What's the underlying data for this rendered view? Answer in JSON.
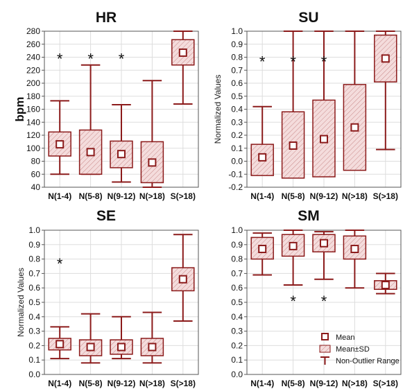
{
  "colors": {
    "box": "#8b1a1a",
    "fill": "#f2d7d7",
    "grid": "#dddddd",
    "axis": "#555555"
  },
  "legend": {
    "mean": "Mean",
    "sd": "Mean±SD",
    "range": "Non-Outlier Range"
  },
  "chart_data": [
    {
      "id": "hr",
      "type": "box",
      "title": "HR",
      "ylabel": "bpm",
      "ylim": [
        40,
        280
      ],
      "yticks": [
        40,
        60,
        80,
        100,
        120,
        140,
        160,
        180,
        200,
        220,
        240,
        260,
        280
      ],
      "ytick_labels": [
        "40",
        "60",
        "80",
        "100",
        "120",
        "140",
        "160",
        "180",
        "200",
        "220",
        "240",
        "260",
        "280"
      ],
      "categories": [
        "N(1-4)",
        "N(5-8)",
        "N(9-12)",
        "N(>18)",
        "S(>18)"
      ],
      "mean": [
        106,
        94,
        91,
        78,
        247
      ],
      "sd_low": [
        88,
        60,
        70,
        47,
        228
      ],
      "sd_high": [
        125,
        128,
        111,
        110,
        267
      ],
      "range_low": [
        60,
        60,
        48,
        40,
        168
      ],
      "range_high": [
        173,
        228,
        167,
        204,
        280
      ],
      "stars": [
        {
          "label": "*",
          "category": 0,
          "y": 240
        },
        {
          "label": "*",
          "category": 1,
          "y": 240
        },
        {
          "label": "*",
          "category": 2,
          "y": 240
        }
      ],
      "grid": true
    },
    {
      "id": "su",
      "type": "box",
      "title": "SU",
      "ylabel": "Normalized Values",
      "ylim": [
        -0.2,
        1.0
      ],
      "yticks": [
        -0.2,
        -0.1,
        0.0,
        0.1,
        0.2,
        0.3,
        0.4,
        0.5,
        0.6,
        0.7,
        0.8,
        0.9,
        1.0
      ],
      "ytick_labels": [
        "-0.2",
        "-0.1",
        "0.0",
        "0.1",
        "0.2",
        "0.3",
        "0.4",
        "0.5",
        "0.6",
        "0.7",
        "0.8",
        "0.9",
        "1.0"
      ],
      "categories": [
        "N(1-4)",
        "N(5-8)",
        "N(9-12)",
        "N(>18)",
        "S(>18)"
      ],
      "mean": [
        0.03,
        0.12,
        0.17,
        0.26,
        0.79
      ],
      "sd_low": [
        -0.11,
        -0.13,
        -0.12,
        -0.07,
        0.61
      ],
      "sd_high": [
        0.13,
        0.38,
        0.47,
        0.59,
        0.97
      ],
      "range_low": [
        -0.04,
        -0.04,
        -0.04,
        -0.04,
        0.09
      ],
      "range_high": [
        0.42,
        1.0,
        1.0,
        1.0,
        1.0
      ],
      "stars": [
        {
          "label": "*",
          "category": 0,
          "y": 0.78
        },
        {
          "label": "*",
          "category": 1,
          "y": 0.78
        },
        {
          "label": "*",
          "category": 2,
          "y": 0.78
        }
      ],
      "grid": true
    },
    {
      "id": "se",
      "type": "box",
      "title": "SE",
      "ylabel": "Normalized Values",
      "ylim": [
        0.0,
        1.0
      ],
      "yticks": [
        0.0,
        0.1,
        0.2,
        0.3,
        0.4,
        0.5,
        0.6,
        0.7,
        0.8,
        0.9,
        1.0
      ],
      "ytick_labels": [
        "0.0",
        "0.1",
        "0.2",
        "0.3",
        "0.4",
        "0.5",
        "0.6",
        "0.7",
        "0.8",
        "0.9",
        "1.0"
      ],
      "categories": [
        "N(1-4)",
        "N(5-8)",
        "N(9-12)",
        "N(>18)",
        "S(>18)"
      ],
      "mean": [
        0.21,
        0.19,
        0.19,
        0.19,
        0.66
      ],
      "sd_low": [
        0.17,
        0.13,
        0.14,
        0.13,
        0.58
      ],
      "sd_high": [
        0.25,
        0.24,
        0.24,
        0.25,
        0.74
      ],
      "range_low": [
        0.11,
        0.08,
        0.11,
        0.08,
        0.37
      ],
      "range_high": [
        0.33,
        0.42,
        0.4,
        0.43,
        0.97
      ],
      "stars": [
        {
          "label": "*",
          "category": 0,
          "y": 0.78
        }
      ],
      "grid": true
    },
    {
      "id": "sm",
      "type": "box",
      "title": "SM",
      "ylabel": "",
      "ylim": [
        0.0,
        1.0
      ],
      "yticks": [
        0.0,
        0.1,
        0.2,
        0.3,
        0.4,
        0.5,
        0.6,
        0.7,
        0.8,
        0.9,
        1.0
      ],
      "ytick_labels": [
        "0.0",
        "0.1",
        "0.2",
        "0.3",
        "0.4",
        "0.5",
        "0.6",
        "0.7",
        "0.8",
        "0.9",
        "1.0"
      ],
      "categories": [
        "N(1-4)",
        "N(5-8)",
        "N(9-12)",
        "N(>18)",
        "S(>18)"
      ],
      "mean": [
        0.87,
        0.89,
        0.91,
        0.87,
        0.62
      ],
      "sd_low": [
        0.8,
        0.82,
        0.85,
        0.8,
        0.59
      ],
      "sd_high": [
        0.95,
        0.97,
        0.97,
        0.96,
        0.65
      ],
      "range_low": [
        0.69,
        0.62,
        0.66,
        0.6,
        0.56
      ],
      "range_high": [
        0.98,
        1.0,
        0.99,
        1.0,
        0.7
      ],
      "stars": [
        {
          "label": "*",
          "category": 1,
          "y": 0.52
        },
        {
          "label": "*",
          "category": 2,
          "y": 0.52
        }
      ],
      "legend": true,
      "grid": true
    }
  ]
}
